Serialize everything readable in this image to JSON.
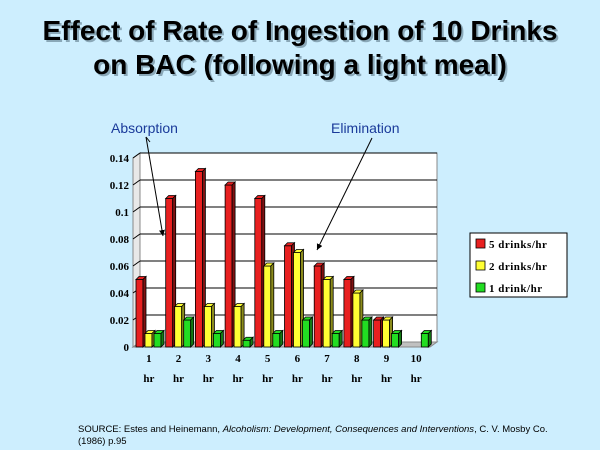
{
  "slide": {
    "title_line1": "Effect of Rate of Ingestion of 10 Drinks",
    "title_line2": "on BAC (following a light meal)",
    "annotation_absorption": "Absorption",
    "annotation_elimination": "Elimination",
    "source_prefix": "SOURCE: Estes and Heinemann, ",
    "source_title": "Alcoholism: Development, Consequences and Interventions",
    "source_suffix": ", C. V. Mosby Co.",
    "source_line2": "(1986) p.95"
  },
  "chart_data": {
    "type": "bar",
    "categories": [
      "1 hr",
      "2 hr",
      "3 hr",
      "4 hr",
      "5 hr",
      "6 hr",
      "7 hr",
      "8 hr",
      "9 hr",
      "10 hr"
    ],
    "category_numbers": [
      "1",
      "2",
      "3",
      "4",
      "5",
      "6",
      "7",
      "8",
      "9",
      "10"
    ],
    "category_units": [
      "hr",
      "hr",
      "hr",
      "hr",
      "hr",
      "hr",
      "hr",
      "hr",
      "hr",
      "hr"
    ],
    "series": [
      {
        "name": "5 drinks/hr",
        "color": "#e82020",
        "values": [
          0.05,
          0.11,
          0.13,
          0.12,
          0.11,
          0.075,
          0.06,
          0.05,
          0.02,
          0
        ]
      },
      {
        "name": "2 drinks/hr",
        "color": "#ffff33",
        "values": [
          0.01,
          0.03,
          0.03,
          0.03,
          0.06,
          0.07,
          0.05,
          0.04,
          0.02,
          0
        ]
      },
      {
        "name": "1 drink/hr",
        "color": "#22dd22",
        "values": [
          0.01,
          0.02,
          0.01,
          0.005,
          0.01,
          0.02,
          0.01,
          0.02,
          0.01,
          0.01
        ]
      }
    ],
    "yticks": [
      "0",
      "0.02",
      "0.04",
      "0.06",
      "0.08",
      "0.1",
      "0.12",
      "0.14"
    ],
    "ylim": [
      0,
      0.14
    ],
    "legend_position": "right",
    "grid": true
  }
}
